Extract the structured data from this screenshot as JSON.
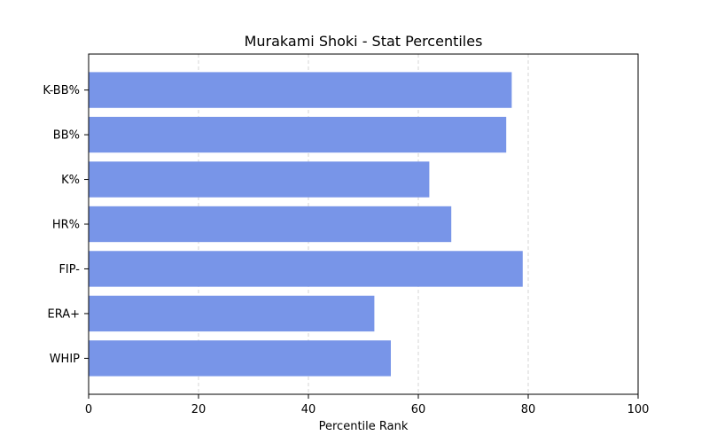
{
  "chart_data": {
    "type": "bar",
    "orientation": "horizontal",
    "title": "Murakami Shoki - Stat Percentiles",
    "xlabel": "Percentile Rank",
    "ylabel": "",
    "categories": [
      "K-BB%",
      "BB%",
      "K%",
      "HR%",
      "FIP-",
      "ERA+",
      "WHIP"
    ],
    "values": [
      77,
      76,
      62,
      66,
      79,
      52,
      55
    ],
    "xlim": [
      0,
      100
    ],
    "xticks": [
      0,
      20,
      40,
      60,
      80,
      100
    ],
    "grid": {
      "x": true,
      "y": false,
      "style": "dashed"
    },
    "bar_color": "#7895e8",
    "grid_color": "#cccccc"
  }
}
